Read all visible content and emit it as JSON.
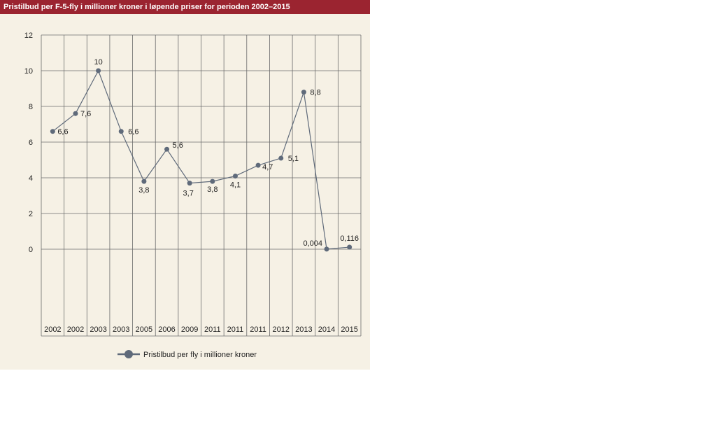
{
  "colors": {
    "title_bg": "#9b2430",
    "panel_bg": "#f6f1e5",
    "series": "#5f6a7a",
    "grid": "#6b6b6b"
  },
  "chart_data": {
    "type": "line",
    "title": "Pristilbud per F-5-fly i millioner kroner i løpende priser for perioden 2002–2015",
    "xlabel": "",
    "ylabel": "",
    "categories": [
      "2002",
      "2002",
      "2003",
      "2003",
      "2005",
      "2006",
      "2009",
      "2011",
      "2011",
      "2011",
      "2012",
      "2013",
      "2014",
      "2015"
    ],
    "ylim": [
      0,
      12
    ],
    "yticks": [
      "0",
      "2",
      "4",
      "6",
      "8",
      "10",
      "12"
    ],
    "grid": true,
    "legend_position": "bottom",
    "series": [
      {
        "name": "Pristilbud per fly i millioner kroner",
        "values": [
          6.6,
          7.6,
          10,
          6.6,
          3.8,
          5.6,
          3.7,
          3.8,
          4.1,
          4.7,
          5.1,
          8.8,
          0.004,
          0.116
        ],
        "labels": [
          "6,6",
          "7,6",
          "10",
          "6,6",
          "3,8",
          "5,6",
          "3,7",
          "3,8",
          "4,1",
          "4,7",
          "5,1",
          "8,8",
          "0,004",
          "0,116"
        ]
      }
    ]
  }
}
